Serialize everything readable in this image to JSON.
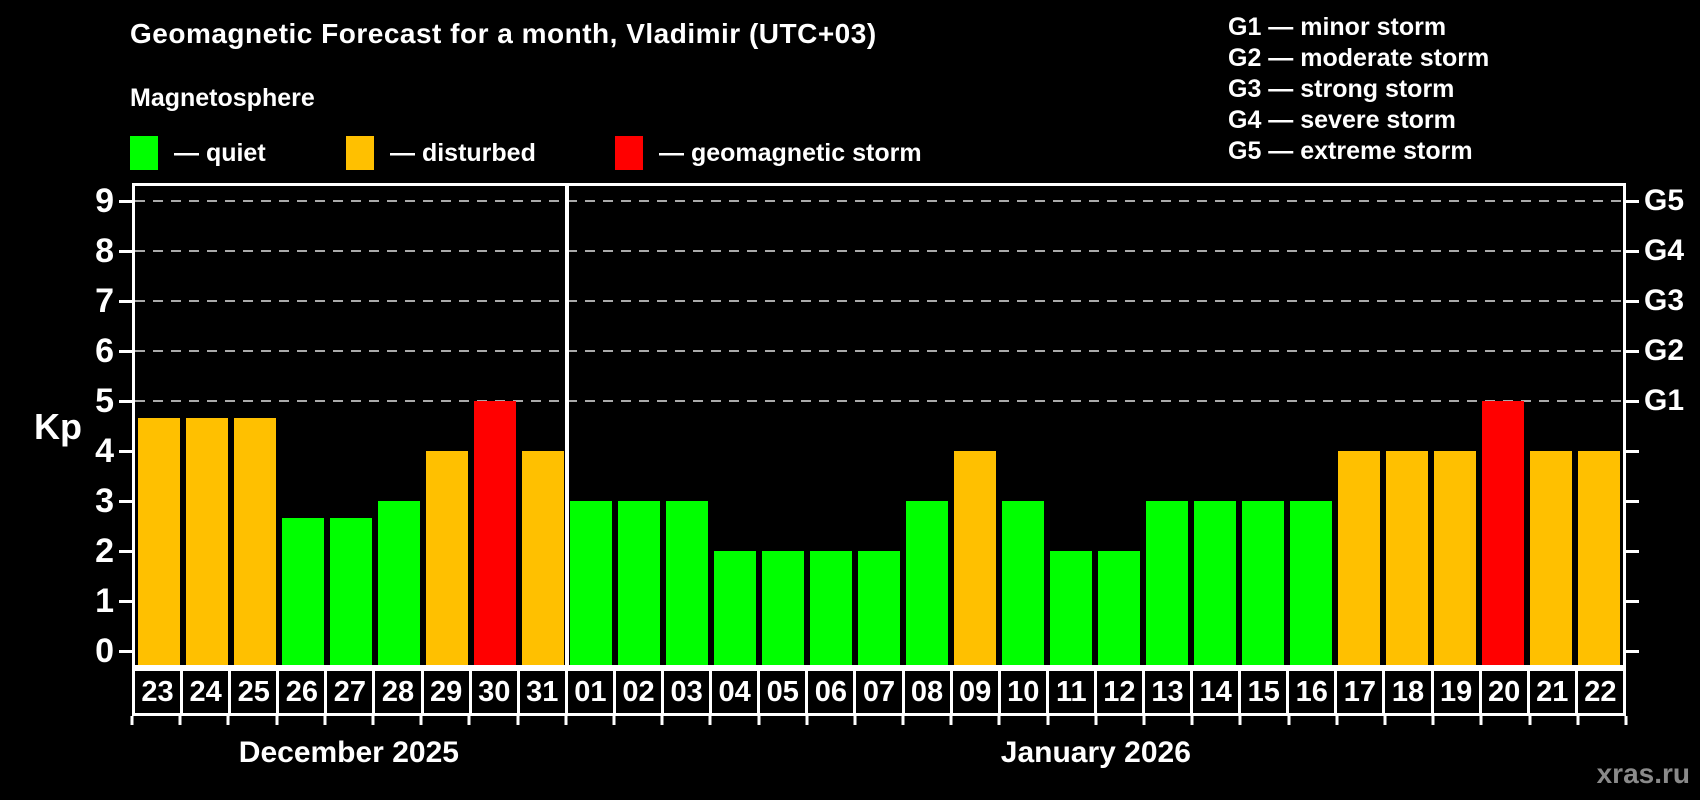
{
  "title": "Geomagnetic Forecast for a month, Vladimir (UTC+03)",
  "legend": {
    "heading": "Magnetosphere",
    "items": [
      {
        "key": "quiet",
        "label": "— quiet",
        "color": "#00ff00"
      },
      {
        "key": "disturbed",
        "label": "— disturbed",
        "color": "#ffc000"
      },
      {
        "key": "storm",
        "label": "— geomagnetic storm",
        "color": "#ff0000"
      }
    ]
  },
  "g_scale_legend": [
    "G1 — minor storm",
    "G2 — moderate storm",
    "G3 — strong storm",
    "G4 — severe storm",
    "G5 — extreme storm"
  ],
  "watermark": "xras.ru",
  "chart_data": {
    "type": "bar",
    "title": "Geomagnetic Forecast for a month, Vladimir (UTC+03)",
    "ylabel": "Kp",
    "ylim": [
      0,
      9
    ],
    "yticks": [
      0,
      1,
      2,
      3,
      4,
      5,
      6,
      7,
      8,
      9
    ],
    "gridlines_at": [
      5,
      6,
      7,
      8,
      9
    ],
    "grid_style": "dashed",
    "right_axis_labels": [
      {
        "label": "G1",
        "kp": 5
      },
      {
        "label": "G2",
        "kp": 6
      },
      {
        "label": "G3",
        "kp": 7
      },
      {
        "label": "G4",
        "kp": 8
      },
      {
        "label": "G5",
        "kp": 9
      }
    ],
    "colors": {
      "quiet": "#00ff00",
      "disturbed": "#ffc000",
      "storm": "#ff0000"
    },
    "groups": [
      {
        "label": "December 2025",
        "days": [
          "23",
          "24",
          "25",
          "26",
          "27",
          "28",
          "29",
          "30",
          "31"
        ],
        "values": [
          4.67,
          4.67,
          4.67,
          2.67,
          2.67,
          3,
          4,
          5,
          4
        ],
        "status": [
          "disturbed",
          "disturbed",
          "disturbed",
          "quiet",
          "quiet",
          "quiet",
          "disturbed",
          "storm",
          "disturbed"
        ]
      },
      {
        "label": "January 2026",
        "days": [
          "01",
          "02",
          "03",
          "04",
          "05",
          "06",
          "07",
          "08",
          "09",
          "10",
          "11",
          "12",
          "13",
          "14",
          "15",
          "16",
          "17",
          "18",
          "19",
          "20",
          "21",
          "22"
        ],
        "values": [
          3,
          3,
          3,
          2,
          2,
          2,
          2,
          3,
          4,
          3,
          2,
          2,
          3,
          3,
          3,
          3,
          4,
          4,
          4,
          5,
          4,
          4
        ],
        "status": [
          "quiet",
          "quiet",
          "quiet",
          "quiet",
          "quiet",
          "quiet",
          "quiet",
          "quiet",
          "disturbed",
          "quiet",
          "quiet",
          "quiet",
          "quiet",
          "quiet",
          "quiet",
          "quiet",
          "disturbed",
          "disturbed",
          "disturbed",
          "storm",
          "disturbed",
          "disturbed"
        ]
      }
    ]
  }
}
